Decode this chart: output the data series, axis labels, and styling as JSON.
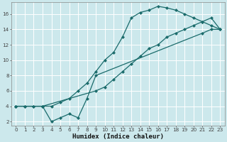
{
  "xlabel": "Humidex (Indice chaleur)",
  "bg_color": "#cce8ec",
  "grid_color": "#ffffff",
  "line_color": "#1a6b6b",
  "line1_x": [
    0,
    1,
    2,
    3,
    4,
    5,
    6,
    7,
    8,
    9,
    10,
    11,
    12,
    13,
    14,
    15,
    16,
    17,
    18,
    19,
    20,
    21,
    22,
    23
  ],
  "line1_y": [
    4,
    4,
    4,
    4,
    4,
    4.5,
    5,
    6,
    7,
    8.5,
    10,
    11,
    13,
    15.5,
    16.2,
    16.5,
    17,
    16.8,
    16.5,
    16,
    15.5,
    15,
    14.5,
    14
  ],
  "line2_x": [
    0,
    3,
    9,
    10,
    11,
    12,
    13,
    14,
    15,
    16,
    17,
    18,
    19,
    20,
    21,
    22,
    23
  ],
  "line2_y": [
    4,
    4,
    6,
    6.5,
    7.5,
    8.5,
    9.5,
    10.5,
    11.5,
    12,
    13,
    13.5,
    14,
    14.5,
    15,
    15.5,
    14
  ],
  "line3_x": [
    0,
    1,
    2,
    3,
    4,
    5,
    6,
    7,
    8,
    9,
    21,
    22,
    23
  ],
  "line3_y": [
    4,
    4,
    4,
    4,
    2,
    2.5,
    3,
    2.5,
    5,
    8,
    13.5,
    14,
    14
  ],
  "xlim_min": -0.5,
  "xlim_max": 23.5,
  "ylim_min": 1.5,
  "ylim_max": 17.5,
  "xticks": [
    0,
    1,
    2,
    3,
    4,
    5,
    6,
    7,
    8,
    9,
    10,
    11,
    12,
    13,
    14,
    15,
    16,
    17,
    18,
    19,
    20,
    21,
    22,
    23
  ],
  "yticks": [
    2,
    4,
    6,
    8,
    10,
    12,
    14,
    16
  ],
  "markersize": 2.5,
  "linewidth": 0.9,
  "tick_fontsize": 5.2,
  "xlabel_fontsize": 6.5
}
